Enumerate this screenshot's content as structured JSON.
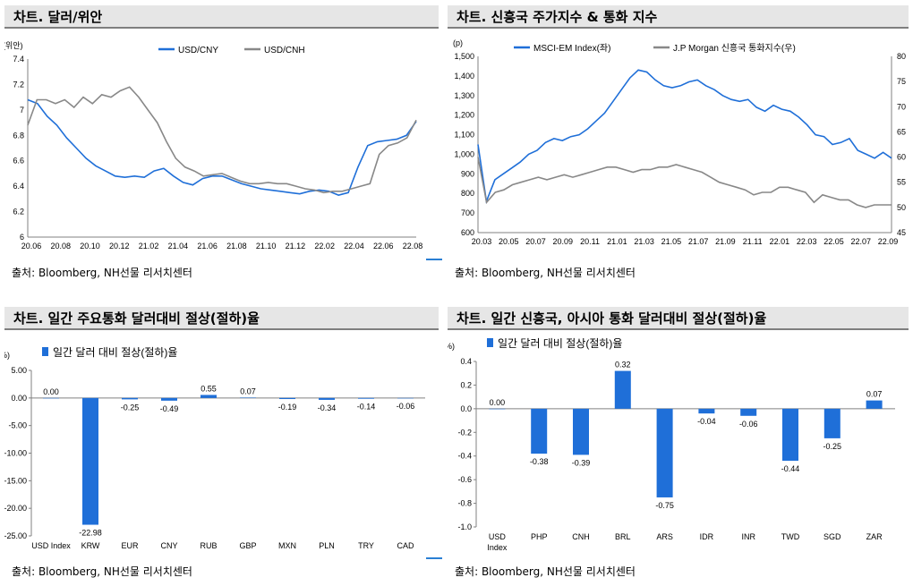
{
  "panels": {
    "p1": {
      "title": "차트. 달러/위안",
      "source": "출처: Bloomberg, NH선물 리서치센터"
    },
    "p2": {
      "title": "차트. 신흥국 주가지수 & 통화 지수",
      "source": "출처: Bloomberg, NH선물 리서치센터"
    },
    "p3": {
      "title": "차트. 일간 주요통화 달러대비 절상(절하)율",
      "source": "출처: Bloomberg, NH선물 리서치센터"
    },
    "p4": {
      "title": "차트. 일간 신흥국, 아시아 통화 달러대비 절상(절하)율",
      "source": "출처: Bloomberg, NH선물 리서치센터"
    }
  },
  "chart_data": [
    {
      "id": "usdcny",
      "type": "line",
      "ylabel": "(위안)",
      "ylim": [
        6,
        7.4
      ],
      "yticks": [
        "7.4",
        "7.2",
        "7",
        "6.8",
        "6.6",
        "6.4",
        "6.2",
        "6"
      ],
      "xticks": [
        "20.06",
        "20.08",
        "20.10",
        "20.12",
        "21.02",
        "21.04",
        "21.06",
        "21.08",
        "21.10",
        "21.12",
        "22.02",
        "22.04",
        "22.06",
        "22.08"
      ],
      "series": [
        {
          "name": "USD/CNY",
          "color": "#1f6fd8",
          "values": [
            7.08,
            7.05,
            6.95,
            6.88,
            6.78,
            6.7,
            6.62,
            6.56,
            6.52,
            6.48,
            6.47,
            6.48,
            6.47,
            6.52,
            6.54,
            6.48,
            6.43,
            6.41,
            6.46,
            6.48,
            6.48,
            6.45,
            6.42,
            6.4,
            6.38,
            6.37,
            6.36,
            6.35,
            6.34,
            6.36,
            6.37,
            6.36,
            6.33,
            6.35,
            6.55,
            6.72,
            6.75,
            6.76,
            6.77,
            6.8,
            6.91
          ]
        },
        {
          "name": "USD/CNH",
          "color": "#888888",
          "values": [
            6.88,
            7.08,
            7.08,
            7.05,
            7.08,
            7.02,
            7.1,
            7.05,
            7.12,
            7.1,
            7.15,
            7.18,
            7.1,
            7.0,
            6.9,
            6.75,
            6.62,
            6.55,
            6.52,
            6.48,
            6.49,
            6.5,
            6.47,
            6.44,
            6.42,
            6.42,
            6.43,
            6.42,
            6.42,
            6.4,
            6.38,
            6.37,
            6.35,
            6.36,
            6.36,
            6.38,
            6.4,
            6.42,
            6.65,
            6.72,
            6.74,
            6.78,
            6.92
          ]
        }
      ]
    },
    {
      "id": "em",
      "type": "line",
      "ylabel": "(p)",
      "ylim": [
        600,
        1500
      ],
      "yticks": [
        "1,500",
        "1,400",
        "1,300",
        "1,200",
        "1,100",
        "1,000",
        "900",
        "800",
        "700",
        "600"
      ],
      "y2lim": [
        45,
        80
      ],
      "y2ticks": [
        "80",
        "75",
        "70",
        "65",
        "60",
        "55",
        "50",
        "45"
      ],
      "xticks": [
        "20.03",
        "20.05",
        "20.07",
        "20.09",
        "20.11",
        "21.01",
        "21.03",
        "21.05",
        "21.07",
        "21.09",
        "21.11",
        "22.01",
        "22.03",
        "22.05",
        "22.07",
        "22.09"
      ],
      "series": [
        {
          "name": "MSCI-EM Index(좌)",
          "color": "#1f6fd8",
          "axis": "left",
          "values": [
            1050,
            760,
            870,
            900,
            930,
            960,
            1000,
            1020,
            1060,
            1080,
            1070,
            1090,
            1100,
            1130,
            1170,
            1210,
            1270,
            1330,
            1390,
            1430,
            1420,
            1380,
            1350,
            1340,
            1350,
            1370,
            1380,
            1350,
            1330,
            1300,
            1280,
            1270,
            1280,
            1240,
            1220,
            1250,
            1230,
            1220,
            1190,
            1150,
            1100,
            1090,
            1050,
            1060,
            1080,
            1020,
            1000,
            980,
            1010,
            980
          ]
        },
        {
          "name": "J.P Morgan 신흥국 통화지수(우)",
          "color": "#888888",
          "axis": "right",
          "values": [
            60,
            51,
            53,
            53.5,
            54.5,
            55,
            55.5,
            56,
            55.5,
            56,
            56.5,
            56,
            56.5,
            57,
            57.5,
            58,
            58,
            57.5,
            57,
            57.5,
            57.5,
            58,
            58,
            58.5,
            58,
            57.5,
            57,
            56,
            55,
            54.5,
            54,
            53.5,
            52.5,
            53,
            53,
            54,
            54,
            53.5,
            53,
            51,
            52.5,
            52,
            51.5,
            51.5,
            50.5,
            50,
            50.5,
            50.5,
            50.5
          ]
        }
      ]
    },
    {
      "id": "major",
      "type": "bar",
      "ylabel": "(%)",
      "legend": "일간 달러 대비 절상(절하)율",
      "ylim": [
        -25,
        5
      ],
      "yticks": [
        "5.00",
        "0.00",
        "-5.00",
        "-10.00",
        "-15.00",
        "-20.00",
        "-25.00"
      ],
      "categories": [
        "USD Index",
        "KRW",
        "EUR",
        "CNY",
        "RUB",
        "GBP",
        "MXN",
        "PLN",
        "TRY",
        "CAD"
      ],
      "values": [
        0.0,
        -22.98,
        -0.25,
        -0.49,
        0.55,
        0.07,
        -0.19,
        -0.34,
        -0.14,
        -0.06
      ],
      "labels": [
        "0.00",
        "-22.98",
        "-0.25",
        "-0.49",
        "0.55",
        "0.07",
        "-0.19",
        "-0.34",
        "-0.14",
        "-0.06"
      ],
      "color": "#1f6fd8"
    },
    {
      "id": "asia",
      "type": "bar",
      "ylabel": "(%)",
      "legend": "일간 달러 대비 절상(절하)율",
      "ylim": [
        -1.0,
        0.4
      ],
      "yticks": [
        "0.4",
        "0.2",
        "0.0",
        "-0.2",
        "-0.4",
        "-0.6",
        "-0.8",
        "-1.0"
      ],
      "categories": [
        "USD Index",
        "PHP",
        "CNH",
        "BRL",
        "ARS",
        "IDR",
        "INR",
        "TWD",
        "SGD",
        "ZAR"
      ],
      "values": [
        0.0,
        -0.38,
        -0.39,
        0.32,
        -0.75,
        -0.04,
        -0.06,
        -0.44,
        -0.25,
        0.07
      ],
      "labels": [
        "0.00",
        "-0.38",
        "-0.39",
        "0.32",
        "-0.75",
        "-0.04",
        "-0.06",
        "-0.44",
        "-0.25",
        "0.07"
      ],
      "color": "#1f6fd8"
    }
  ]
}
